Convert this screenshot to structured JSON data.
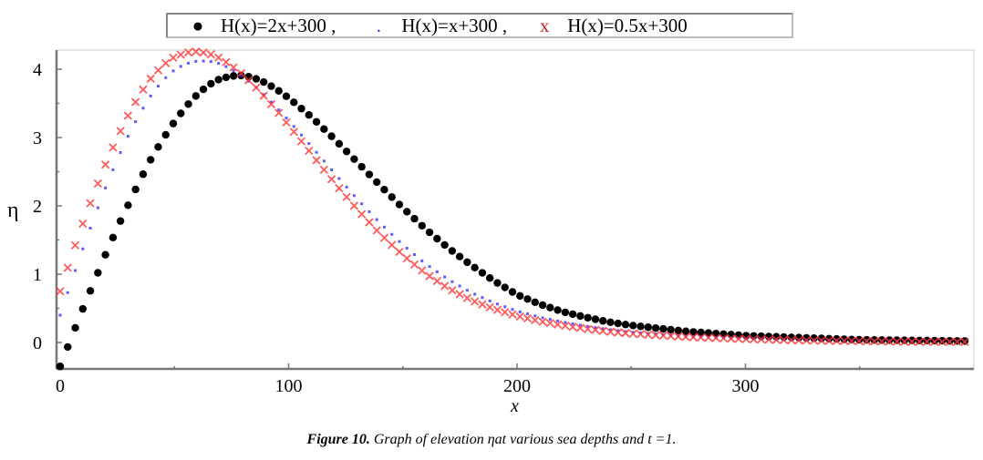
{
  "chart_data": {
    "type": "scatter",
    "title": "",
    "xlabel": "x",
    "ylabel": "η",
    "xlim": [
      -2,
      400
    ],
    "ylim": [
      -0.39,
      4.28
    ],
    "xticks": [
      0,
      100,
      200,
      300
    ],
    "xtick_labels": [
      "0",
      "100",
      "200",
      "300"
    ],
    "yticks": [
      0,
      1,
      2,
      3,
      4
    ],
    "ytick_labels": [
      "0",
      "1",
      "2",
      "3",
      "4"
    ],
    "grid": false,
    "legend_position": "top-center",
    "x": [
      0,
      5,
      10,
      15,
      20,
      25,
      30,
      35,
      40,
      45,
      50,
      55,
      60,
      65,
      70,
      75,
      80,
      85,
      90,
      95,
      100,
      110,
      120,
      130,
      140,
      150,
      160,
      170,
      180,
      190,
      200,
      210,
      220,
      230,
      240,
      250,
      275,
      300,
      325,
      350,
      375,
      400
    ],
    "series": [
      {
        "name": "H(x)=2x+300 ,",
        "marker": "dot",
        "color": "#000000",
        "values": [
          -0.35,
          0.08,
          0.5,
          0.9,
          1.3,
          1.68,
          2.03,
          2.38,
          2.7,
          2.98,
          3.23,
          3.45,
          3.63,
          3.77,
          3.86,
          3.9,
          3.91,
          3.87,
          3.8,
          3.7,
          3.58,
          3.3,
          2.98,
          2.64,
          2.3,
          1.97,
          1.66,
          1.38,
          1.13,
          0.9,
          0.7,
          0.56,
          0.45,
          0.37,
          0.3,
          0.25,
          0.16,
          0.1,
          0.07,
          0.04,
          0.03,
          0.02
        ]
      },
      {
        "name": "H(x)=x+300 ,",
        "marker": "point",
        "color": "#3333ff",
        "values": [
          0.4,
          0.9,
          1.38,
          1.84,
          2.28,
          2.68,
          3.04,
          3.36,
          3.63,
          3.84,
          3.99,
          4.08,
          4.12,
          4.12,
          4.08,
          4.0,
          3.89,
          3.76,
          3.6,
          3.43,
          3.25,
          2.87,
          2.48,
          2.1,
          1.75,
          1.43,
          1.15,
          0.92,
          0.73,
          0.58,
          0.46,
          0.37,
          0.3,
          0.24,
          0.19,
          0.15,
          0.09,
          0.06,
          0.04,
          0.03,
          0.02,
          0.01
        ]
      },
      {
        "name": "H(x)=0.5x+300",
        "marker": "x",
        "color": "#ff3333",
        "values": [
          0.75,
          1.27,
          1.75,
          2.2,
          2.62,
          3.0,
          3.34,
          3.64,
          3.88,
          4.06,
          4.18,
          4.24,
          4.26,
          4.23,
          4.16,
          4.05,
          3.92,
          3.76,
          3.58,
          3.39,
          3.18,
          2.76,
          2.34,
          1.95,
          1.59,
          1.28,
          1.01,
          0.79,
          0.62,
          0.49,
          0.39,
          0.31,
          0.25,
          0.2,
          0.16,
          0.13,
          0.08,
          0.05,
          0.03,
          0.02,
          0.01,
          0.01
        ]
      }
    ],
    "legend_markers": [
      "●",
      ".",
      "x"
    ]
  },
  "caption": {
    "label": "Figure 10.",
    "text": " Graph of elevation ηat various sea depths and t =1."
  }
}
